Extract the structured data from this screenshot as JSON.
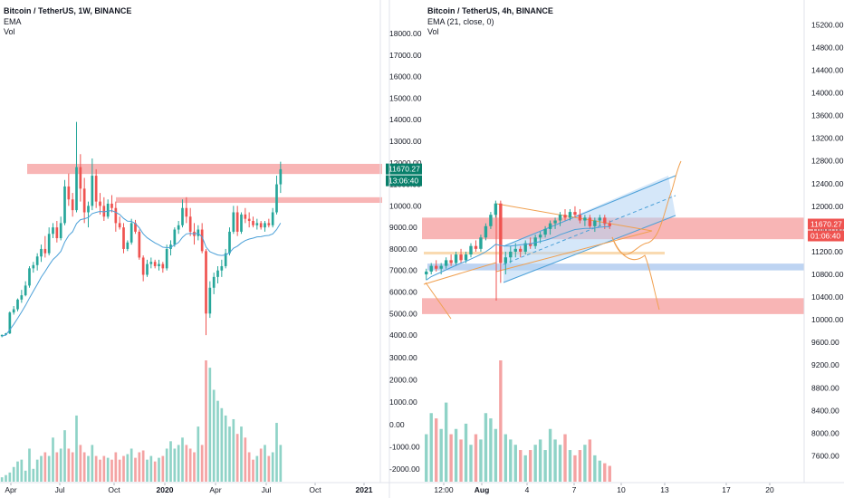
{
  "colors": {
    "up": "#26a69a",
    "down": "#ef5350",
    "vol_up": "#8fd3c7",
    "vol_down": "#f4a3a3",
    "ema": "#4ba0d8",
    "zone_red": "#f7a8a8",
    "zone_orange": "#f8d3a3",
    "zone_blue": "#b3cdf0",
    "channel_line": "#4ba0d8",
    "triangle_line": "#f0a050",
    "tag_green": "#087f6a",
    "tag_red": "#ef5350"
  },
  "chart_data": [
    {
      "type": "candlestick",
      "title": "Bitcoin / TetherUS, 1W, BINANCE",
      "indicators": [
        "EMA",
        "Vol"
      ],
      "ylim": [
        3500,
        18800
      ],
      "y_ticks": [
        "18000.00",
        "17000.00",
        "16000.00",
        "15000.00",
        "14000.00",
        "13000.00",
        "12000.00",
        "11000.00",
        "10000.00",
        "9000.00",
        "8000.00",
        "7000.00",
        "6000.00",
        "5000.00",
        "4000.00"
      ],
      "vol_ticks": [
        "3000.00",
        "2000.00",
        "1000.00",
        "0.00",
        "-1000.00",
        "-2000.00"
      ],
      "x_ticks": [
        "Apr",
        "Jul",
        "Oct",
        "2020",
        "Apr",
        "Jul",
        "Oct",
        "2021"
      ],
      "last_price": "11670.27",
      "countdown": "13:06:40",
      "zones": [
        {
          "name": "resistance-12000",
          "from": 11480,
          "to": 11950,
          "color": "red"
        },
        {
          "name": "resistance-10400",
          "from": 10140,
          "to": 10400,
          "color": "red"
        }
      ],
      "candles": [
        [
          3950,
          4030,
          3900,
          4010
        ],
        [
          4010,
          4100,
          3980,
          4080
        ],
        [
          4080,
          5100,
          4050,
          5050
        ],
        [
          5050,
          5350,
          4950,
          5200
        ],
        [
          5200,
          5700,
          5100,
          5650
        ],
        [
          5650,
          6100,
          5500,
          5850
        ],
        [
          5850,
          6500,
          5800,
          6300
        ],
        [
          6300,
          7200,
          6200,
          7100
        ],
        [
          7100,
          7400,
          6900,
          7250
        ],
        [
          7250,
          7800,
          7000,
          7650
        ],
        [
          7650,
          8200,
          7400,
          8000
        ],
        [
          8000,
          8600,
          7600,
          7800
        ],
        [
          7800,
          9000,
          7700,
          8700
        ],
        [
          8700,
          9200,
          8500,
          9000
        ],
        [
          9000,
          9300,
          8300,
          8500
        ],
        [
          8500,
          9500,
          8400,
          9200
        ],
        [
          9200,
          11200,
          9100,
          10900
        ],
        [
          10900,
          11500,
          10000,
          10300
        ],
        [
          10300,
          10600,
          9500,
          9800
        ],
        [
          9800,
          13900,
          9700,
          11800
        ],
        [
          11800,
          12400,
          10200,
          10800
        ],
        [
          10800,
          11300,
          9200,
          9700
        ],
        [
          9700,
          10200,
          9000,
          10000
        ],
        [
          10000,
          12200,
          9800,
          11400
        ],
        [
          11400,
          11700,
          9900,
          10200
        ],
        [
          10200,
          10600,
          9600,
          10000
        ],
        [
          10000,
          10400,
          9300,
          9500
        ],
        [
          9500,
          10300,
          9400,
          10100
        ],
        [
          10100,
          10500,
          9700,
          9900
        ],
        [
          9900,
          10200,
          8800,
          9200
        ],
        [
          9200,
          9500,
          8900,
          9000
        ],
        [
          9000,
          9200,
          7800,
          8000
        ],
        [
          8000,
          8400,
          7900,
          8300
        ],
        [
          8300,
          9400,
          8200,
          9200
        ],
        [
          9200,
          9350,
          8700,
          8800
        ],
        [
          8800,
          8900,
          7500,
          7600
        ],
        [
          7600,
          7700,
          6500,
          6800
        ],
        [
          6800,
          7500,
          6700,
          7300
        ],
        [
          7300,
          7600,
          7100,
          7400
        ],
        [
          7400,
          7500,
          7100,
          7200
        ],
        [
          7200,
          7500,
          7000,
          7300
        ],
        [
          7300,
          7400,
          6900,
          7100
        ],
        [
          7100,
          8200,
          7000,
          8000
        ],
        [
          8000,
          8400,
          7700,
          8200
        ],
        [
          8200,
          9000,
          8100,
          8900
        ],
        [
          8900,
          9300,
          8700,
          9100
        ],
        [
          9100,
          10300,
          9000,
          9900
        ],
        [
          9900,
          10400,
          9200,
          9500
        ],
        [
          9500,
          9900,
          8600,
          8800
        ],
        [
          8800,
          9200,
          8200,
          8600
        ],
        [
          8600,
          9100,
          8400,
          8900
        ],
        [
          8900,
          9200,
          7800,
          7900
        ],
        [
          7900,
          8000,
          4000,
          5000
        ],
        [
          5000,
          6500,
          4800,
          6200
        ],
        [
          6200,
          6900,
          5900,
          6700
        ],
        [
          6700,
          7200,
          6400,
          7000
        ],
        [
          7000,
          7500,
          6700,
          7200
        ],
        [
          7200,
          8000,
          7100,
          7800
        ],
        [
          7800,
          9000,
          7700,
          8800
        ],
        [
          8800,
          10000,
          8700,
          9700
        ],
        [
          9700,
          10000,
          8600,
          8800
        ],
        [
          8800,
          9700,
          8700,
          9600
        ],
        [
          9600,
          9900,
          9200,
          9400
        ],
        [
          9400,
          9700,
          9000,
          9300
        ],
        [
          9300,
          9500,
          9000,
          9100
        ],
        [
          9100,
          9400,
          8900,
          9200
        ],
        [
          9200,
          9300,
          8900,
          9000
        ],
        [
          9000,
          9300,
          8800,
          9200
        ],
        [
          9200,
          9400,
          9000,
          9100
        ],
        [
          9100,
          9900,
          9000,
          9700
        ],
        [
          9700,
          11400,
          9600,
          11000
        ],
        [
          11000,
          12050,
          10600,
          11700
        ]
      ],
      "ema": [
        3950,
        4010,
        4250,
        4500,
        4780,
        5070,
        5380,
        5720,
        6040,
        6360,
        6690,
        6950,
        7250,
        7510,
        7680,
        7890,
        8320,
        8620,
        8800,
        9180,
        9360,
        9400,
        9460,
        9640,
        9700,
        9740,
        9720,
        9760,
        9780,
        9700,
        9600,
        9420,
        9290,
        9280,
        9180,
        8980,
        8700,
        8520,
        8400,
        8280,
        8190,
        8080,
        8060,
        8070,
        8190,
        8300,
        8540,
        8700,
        8720,
        8700,
        8730,
        8560,
        8090,
        7870,
        7790,
        7720,
        7700,
        7720,
        7830,
        8030,
        8130,
        8280,
        8390,
        8460,
        8500,
        8560,
        8570,
        8610,
        8630,
        8700,
        8900,
        9200
      ],
      "volume": [
        120,
        180,
        250,
        400,
        550,
        600,
        300,
        900,
        350,
        600,
        700,
        800,
        700,
        1200,
        800,
        900,
        1400,
        900,
        800,
        1800,
        1000,
        800,
        700,
        1000,
        700,
        600,
        700,
        650,
        600,
        800,
        600,
        700,
        750,
        900,
        650,
        800,
        850,
        600,
        700,
        550,
        650,
        700,
        900,
        1100,
        900,
        1000,
        1200,
        1000,
        900,
        800,
        1500,
        1000,
        3300,
        3100,
        2500,
        2200,
        2000,
        1800,
        1500,
        1700,
        1300,
        1500,
        1200,
        800,
        600,
        700,
        900,
        1000,
        700,
        800,
        1600,
        1000
      ]
    },
    {
      "type": "candlestick",
      "title": "Bitcoin / TetherUS, 4h, BINANCE",
      "indicators": [
        "EMA (21, close, 0)",
        "Vol"
      ],
      "ylim": [
        7400,
        15350
      ],
      "y_ticks": [
        "15200.00",
        "14800.00",
        "14400.00",
        "14000.00",
        "13600.00",
        "13200.00",
        "12800.00",
        "12400.00",
        "12000.00",
        "11600.00",
        "11200.00",
        "10800.00",
        "10400.00",
        "10000.00",
        "9600.00",
        "9200.00",
        "8800.00",
        "8400.00",
        "8000.00",
        "7600.00"
      ],
      "x_ticks": [
        "12:00",
        "Aug",
        "4",
        "7",
        "10",
        "13",
        "17",
        "20"
      ],
      "last_price": "11670.27",
      "countdown": "01:06:40",
      "zones": [
        {
          "name": "resistance-upper",
          "from": 11420,
          "to": 11800,
          "color": "red"
        },
        {
          "name": "support-orange",
          "from": 11150,
          "to": 11200,
          "color": "orange"
        },
        {
          "name": "support-blue",
          "from": 10870,
          "to": 10990,
          "color": "blue"
        },
        {
          "name": "support-lower",
          "from": 10100,
          "to": 10380,
          "color": "red"
        }
      ],
      "candles": [
        [
          10800,
          10900,
          10700,
          10850
        ],
        [
          10850,
          11000,
          10800,
          10950
        ],
        [
          10950,
          11050,
          10850,
          10900
        ],
        [
          10900,
          11000,
          10800,
          10950
        ],
        [
          10950,
          11100,
          10900,
          11050
        ],
        [
          11050,
          11150,
          10950,
          11000
        ],
        [
          11000,
          11200,
          10950,
          11150
        ],
        [
          11150,
          11250,
          11000,
          11050
        ],
        [
          11050,
          11200,
          11000,
          11150
        ],
        [
          11150,
          11350,
          11100,
          11300
        ],
        [
          11300,
          11400,
          11200,
          11250
        ],
        [
          11250,
          11500,
          11200,
          11450
        ],
        [
          11450,
          11700,
          11400,
          11650
        ],
        [
          11650,
          11900,
          11600,
          11850
        ],
        [
          11850,
          12100,
          11800,
          12050
        ],
        [
          12050,
          12100,
          10650,
          11000
        ],
        [
          11000,
          11200,
          10800,
          11100
        ],
        [
          11100,
          11300,
          11000,
          11200
        ],
        [
          11200,
          11350,
          11100,
          11250
        ],
        [
          11250,
          11300,
          11100,
          11200
        ],
        [
          11200,
          11400,
          11150,
          11350
        ],
        [
          11350,
          11450,
          11250,
          11300
        ],
        [
          11300,
          11500,
          11250,
          11450
        ],
        [
          11450,
          11550,
          11350,
          11500
        ],
        [
          11500,
          11650,
          11450,
          11600
        ],
        [
          11600,
          11750,
          11500,
          11700
        ],
        [
          11700,
          11800,
          11600,
          11750
        ],
        [
          11750,
          11900,
          11650,
          11850
        ],
        [
          11850,
          11950,
          11750,
          11800
        ],
        [
          11800,
          11950,
          11750,
          11900
        ],
        [
          11900,
          12000,
          11800,
          11850
        ],
        [
          11850,
          11950,
          11700,
          11750
        ],
        [
          11750,
          11850,
          11650,
          11800
        ],
        [
          11800,
          11850,
          11600,
          11650
        ],
        [
          11650,
          11800,
          11550,
          11750
        ],
        [
          11750,
          11850,
          11650,
          11800
        ],
        [
          11800,
          11850,
          11600,
          11700
        ],
        [
          11700,
          11750,
          11600,
          11650
        ]
      ],
      "ema": [
        10700,
        10760,
        10800,
        10840,
        10880,
        10920,
        10960,
        11000,
        11030,
        11070,
        11110,
        11150,
        11200,
        11260,
        11330,
        11310,
        11300,
        11300,
        11310,
        11320,
        11330,
        11340,
        11360,
        11380,
        11400,
        11430,
        11460,
        11500,
        11530,
        11560,
        11590,
        11600,
        11610,
        11610,
        11620,
        11630,
        11640,
        11640
      ],
      "volume": [
        900,
        1300,
        1200,
        1000,
        1500,
        900,
        1000,
        800,
        1100,
        700,
        900,
        800,
        1300,
        1200,
        1000,
        2300,
        900,
        800,
        700,
        600,
        500,
        600,
        700,
        800,
        600,
        1000,
        800,
        700,
        900,
        600,
        500,
        600,
        700,
        800,
        500,
        400,
        350,
        300
      ]
    }
  ]
}
